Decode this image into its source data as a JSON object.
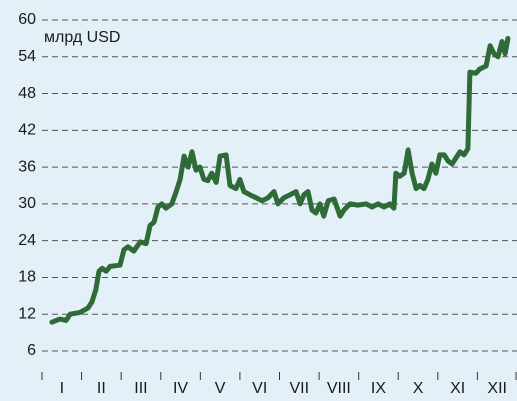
{
  "chart_data": {
    "type": "line",
    "y_label": "млрд USD",
    "x": [
      0.25,
      0.45,
      0.61,
      0.71,
      0.96,
      1.16,
      1.26,
      1.36,
      1.44,
      1.52,
      1.62,
      1.72,
      1.97,
      2.07,
      2.17,
      2.32,
      2.48,
      2.63,
      2.73,
      2.83,
      2.93,
      3.03,
      3.13,
      3.28,
      3.39,
      3.49,
      3.59,
      3.69,
      3.79,
      3.89,
      3.99,
      4.09,
      4.19,
      4.29,
      4.4,
      4.5,
      4.65,
      4.75,
      4.9,
      5.0,
      5.1,
      5.25,
      5.41,
      5.56,
      5.71,
      5.86,
      5.96,
      6.11,
      6.27,
      6.42,
      6.52,
      6.62,
      6.72,
      6.82,
      6.92,
      7.02,
      7.12,
      7.23,
      7.38,
      7.53,
      7.63,
      7.78,
      7.98,
      8.19,
      8.34,
      8.49,
      8.64,
      8.79,
      8.89,
      8.94,
      9.04,
      9.15,
      9.25,
      9.35,
      9.45,
      9.55,
      9.65,
      9.75,
      9.85,
      9.95,
      10.05,
      10.16,
      10.26,
      10.36,
      10.46,
      10.56,
      10.66,
      10.76,
      10.81,
      10.96,
      11.06,
      11.22,
      11.32,
      11.42,
      11.52,
      11.62,
      11.7,
      11.77
    ],
    "series": [
      {
        "color": "#2f6b37",
        "values": [
          10.7,
          11.2,
          11,
          12,
          12.3,
          13,
          14,
          16,
          19,
          19.5,
          19,
          19.8,
          20,
          22.5,
          23,
          22.3,
          23.8,
          23.5,
          26.5,
          27,
          29.5,
          30,
          29.3,
          30,
          32,
          34,
          37.8,
          36,
          38.5,
          35.5,
          36,
          34,
          33.8,
          35,
          33.5,
          37.8,
          38,
          33,
          32.5,
          34,
          32,
          31.5,
          31,
          30.5,
          31,
          32,
          30,
          31,
          31.5,
          32,
          30,
          31.5,
          32,
          29,
          28.5,
          30,
          28,
          30.5,
          30.8,
          28,
          29,
          30,
          29.8,
          30,
          29.5,
          30,
          29.5,
          30,
          29.3,
          35,
          34.5,
          35,
          38.8,
          35,
          32.5,
          33,
          32.5,
          34,
          36.5,
          35,
          38,
          38,
          37,
          36.5,
          37.5,
          38.5,
          38,
          39,
          51.5,
          51.3,
          52,
          52.5,
          55.8,
          54.5,
          54,
          56.5,
          54.5,
          57
        ]
      }
    ],
    "xlim": [
      0,
      12
    ],
    "xticks": [
      {
        "value": 0.5,
        "label": "I"
      },
      {
        "value": 1.5,
        "label": "II"
      },
      {
        "value": 2.5,
        "label": "III"
      },
      {
        "value": 3.5,
        "label": "IV"
      },
      {
        "value": 4.5,
        "label": "V"
      },
      {
        "value": 5.5,
        "label": "VI"
      },
      {
        "value": 6.5,
        "label": "VII"
      },
      {
        "value": 7.5,
        "label": "VIII"
      },
      {
        "value": 8.5,
        "label": "IX"
      },
      {
        "value": 9.5,
        "label": "X"
      },
      {
        "value": 10.5,
        "label": "XI"
      },
      {
        "value": 11.5,
        "label": "XII"
      }
    ],
    "ylim": [
      6,
      60
    ],
    "yticks": [
      6,
      12,
      18,
      24,
      30,
      36,
      42,
      48,
      54,
      60
    ],
    "grid": true
  }
}
